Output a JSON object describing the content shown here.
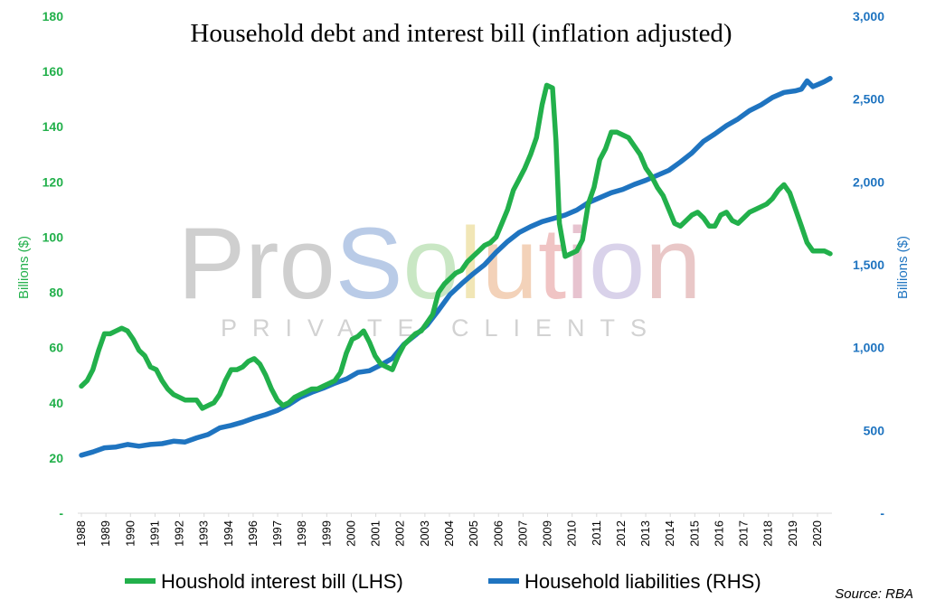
{
  "chart_data": {
    "type": "line",
    "title": "Household debt and interest bill (inflation adjusted)",
    "ylabel_left": "Billions ($)",
    "ylabel_right": "Billions ($)",
    "ylim_left": [
      0,
      180
    ],
    "ylim_right": [
      0,
      3000
    ],
    "yticks_left": [
      "-",
      "20",
      "40",
      "60",
      "80",
      "100",
      "120",
      "140",
      "160",
      "180"
    ],
    "yticks_right": [
      "-",
      "500",
      "1,000",
      "1,500",
      "2,000",
      "2,500",
      "3,000"
    ],
    "xlim": [
      1988,
      2020.5
    ],
    "xticks": [
      "1988",
      "1989",
      "1990",
      "1991",
      "1992",
      "1993",
      "1994",
      "1996",
      "1997",
      "1998",
      "1999",
      "2000",
      "2001",
      "2002",
      "2003",
      "2004",
      "2005",
      "2006",
      "2007",
      "2009",
      "2010",
      "2011",
      "2012",
      "2013",
      "2014",
      "2015",
      "2016",
      "2017",
      "2018",
      "2019",
      "2020"
    ],
    "grid": false,
    "legend_position": "bottom",
    "source": "Source: RBA",
    "watermark": {
      "main": "ProSolution",
      "sub": "PRIVATE CLIENTS"
    },
    "series": [
      {
        "name": "Houshold interest bill (LHS)",
        "axis": "left",
        "color": "#22b04b",
        "points": [
          [
            1988.0,
            46
          ],
          [
            1988.25,
            48
          ],
          [
            1988.5,
            52
          ],
          [
            1988.75,
            59
          ],
          [
            1989.0,
            65
          ],
          [
            1989.25,
            65
          ],
          [
            1989.5,
            66
          ],
          [
            1989.75,
            67
          ],
          [
            1990.0,
            66
          ],
          [
            1990.25,
            63
          ],
          [
            1990.5,
            59
          ],
          [
            1990.75,
            57
          ],
          [
            1991.0,
            53
          ],
          [
            1991.25,
            52
          ],
          [
            1991.5,
            48
          ],
          [
            1991.75,
            45
          ],
          [
            1992.0,
            43
          ],
          [
            1992.25,
            42
          ],
          [
            1992.5,
            41
          ],
          [
            1992.75,
            41
          ],
          [
            1993.0,
            41
          ],
          [
            1993.25,
            38
          ],
          [
            1993.5,
            39
          ],
          [
            1993.75,
            40
          ],
          [
            1994.0,
            43
          ],
          [
            1994.25,
            48
          ],
          [
            1994.5,
            52
          ],
          [
            1994.75,
            52
          ],
          [
            1995.0,
            53
          ],
          [
            1995.25,
            55
          ],
          [
            1995.5,
            56
          ],
          [
            1995.75,
            54
          ],
          [
            1996.0,
            50
          ],
          [
            1996.25,
            45
          ],
          [
            1996.5,
            41
          ],
          [
            1996.75,
            39
          ],
          [
            1997.0,
            40
          ],
          [
            1997.25,
            42
          ],
          [
            1997.5,
            43
          ],
          [
            1997.75,
            44
          ],
          [
            1998.0,
            45
          ],
          [
            1998.25,
            45
          ],
          [
            1998.5,
            46
          ],
          [
            1998.75,
            47
          ],
          [
            1999.0,
            48
          ],
          [
            1999.25,
            51
          ],
          [
            1999.5,
            58
          ],
          [
            1999.75,
            63
          ],
          [
            2000.0,
            64
          ],
          [
            2000.25,
            66
          ],
          [
            2000.5,
            62
          ],
          [
            2000.75,
            57
          ],
          [
            2001.0,
            54
          ],
          [
            2001.25,
            53
          ],
          [
            2001.5,
            52
          ],
          [
            2001.75,
            57
          ],
          [
            2002.0,
            61
          ],
          [
            2002.25,
            63
          ],
          [
            2002.5,
            65
          ],
          [
            2002.75,
            66
          ],
          [
            2003.0,
            69
          ],
          [
            2003.25,
            72
          ],
          [
            2003.5,
            80
          ],
          [
            2003.75,
            83
          ],
          [
            2004.0,
            85
          ],
          [
            2004.25,
            87
          ],
          [
            2004.5,
            88
          ],
          [
            2004.75,
            91
          ],
          [
            2005.0,
            93
          ],
          [
            2005.25,
            95
          ],
          [
            2005.5,
            97
          ],
          [
            2005.75,
            98
          ],
          [
            2006.0,
            100
          ],
          [
            2006.25,
            105
          ],
          [
            2006.5,
            110
          ],
          [
            2006.75,
            117
          ],
          [
            2007.0,
            121
          ],
          [
            2007.25,
            125
          ],
          [
            2007.5,
            130
          ],
          [
            2007.75,
            136
          ],
          [
            2008.0,
            148
          ],
          [
            2008.2,
            155
          ],
          [
            2008.45,
            154
          ],
          [
            2008.6,
            135
          ],
          [
            2008.75,
            105
          ],
          [
            2009.0,
            93
          ],
          [
            2009.25,
            94
          ],
          [
            2009.5,
            95
          ],
          [
            2009.75,
            99
          ],
          [
            2010.0,
            112
          ],
          [
            2010.25,
            118
          ],
          [
            2010.5,
            128
          ],
          [
            2010.75,
            132
          ],
          [
            2011.0,
            138
          ],
          [
            2011.25,
            138
          ],
          [
            2011.5,
            137
          ],
          [
            2011.75,
            136
          ],
          [
            2012.0,
            133
          ],
          [
            2012.25,
            130
          ],
          [
            2012.5,
            125
          ],
          [
            2012.75,
            122
          ],
          [
            2013.0,
            118
          ],
          [
            2013.25,
            115
          ],
          [
            2013.5,
            110
          ],
          [
            2013.75,
            105
          ],
          [
            2014.0,
            104
          ],
          [
            2014.25,
            106
          ],
          [
            2014.5,
            108
          ],
          [
            2014.75,
            109
          ],
          [
            2015.0,
            107
          ],
          [
            2015.25,
            104
          ],
          [
            2015.5,
            104
          ],
          [
            2015.75,
            108
          ],
          [
            2016.0,
            109
          ],
          [
            2016.25,
            106
          ],
          [
            2016.5,
            105
          ],
          [
            2016.75,
            107
          ],
          [
            2017.0,
            109
          ],
          [
            2017.25,
            110
          ],
          [
            2017.5,
            111
          ],
          [
            2017.75,
            112
          ],
          [
            2018.0,
            114
          ],
          [
            2018.25,
            117
          ],
          [
            2018.5,
            119
          ],
          [
            2018.75,
            116
          ],
          [
            2019.0,
            110
          ],
          [
            2019.25,
            104
          ],
          [
            2019.5,
            98
          ],
          [
            2019.75,
            95
          ],
          [
            2020.0,
            95
          ],
          [
            2020.25,
            95
          ],
          [
            2020.5,
            94
          ]
        ]
      },
      {
        "name": "Household liabilities (RHS)",
        "axis": "right",
        "color": "#1f74c0",
        "points": [
          [
            1988.0,
            350
          ],
          [
            1988.5,
            370
          ],
          [
            1989.0,
            395
          ],
          [
            1989.5,
            400
          ],
          [
            1990.0,
            415
          ],
          [
            1990.5,
            405
          ],
          [
            1991.0,
            415
          ],
          [
            1991.5,
            420
          ],
          [
            1992.0,
            435
          ],
          [
            1992.5,
            430
          ],
          [
            1993.0,
            455
          ],
          [
            1993.5,
            475
          ],
          [
            1994.0,
            515
          ],
          [
            1994.5,
            530
          ],
          [
            1995.0,
            550
          ],
          [
            1995.5,
            575
          ],
          [
            1996.0,
            595
          ],
          [
            1996.5,
            620
          ],
          [
            1997.0,
            655
          ],
          [
            1997.5,
            700
          ],
          [
            1998.0,
            730
          ],
          [
            1998.5,
            755
          ],
          [
            1999.0,
            785
          ],
          [
            1999.5,
            810
          ],
          [
            2000.0,
            850
          ],
          [
            2000.5,
            860
          ],
          [
            2001.0,
            895
          ],
          [
            2001.5,
            935
          ],
          [
            2002.0,
            1020
          ],
          [
            2002.5,
            1075
          ],
          [
            2003.0,
            1135
          ],
          [
            2003.5,
            1225
          ],
          [
            2004.0,
            1320
          ],
          [
            2004.5,
            1385
          ],
          [
            2005.0,
            1445
          ],
          [
            2005.5,
            1500
          ],
          [
            2006.0,
            1575
          ],
          [
            2006.5,
            1640
          ],
          [
            2007.0,
            1695
          ],
          [
            2007.5,
            1730
          ],
          [
            2008.0,
            1760
          ],
          [
            2008.5,
            1780
          ],
          [
            2009.0,
            1800
          ],
          [
            2009.5,
            1830
          ],
          [
            2010.0,
            1875
          ],
          [
            2010.5,
            1905
          ],
          [
            2011.0,
            1935
          ],
          [
            2011.5,
            1955
          ],
          [
            2012.0,
            1985
          ],
          [
            2012.5,
            2010
          ],
          [
            2013.0,
            2040
          ],
          [
            2013.5,
            2070
          ],
          [
            2014.0,
            2120
          ],
          [
            2014.5,
            2175
          ],
          [
            2015.0,
            2245
          ],
          [
            2015.5,
            2290
          ],
          [
            2016.0,
            2340
          ],
          [
            2016.5,
            2380
          ],
          [
            2017.0,
            2430
          ],
          [
            2017.5,
            2465
          ],
          [
            2018.0,
            2510
          ],
          [
            2018.5,
            2540
          ],
          [
            2019.0,
            2550
          ],
          [
            2019.25,
            2560
          ],
          [
            2019.5,
            2610
          ],
          [
            2019.75,
            2575
          ],
          [
            2020.0,
            2590
          ],
          [
            2020.25,
            2605
          ],
          [
            2020.5,
            2625
          ]
        ]
      }
    ]
  }
}
